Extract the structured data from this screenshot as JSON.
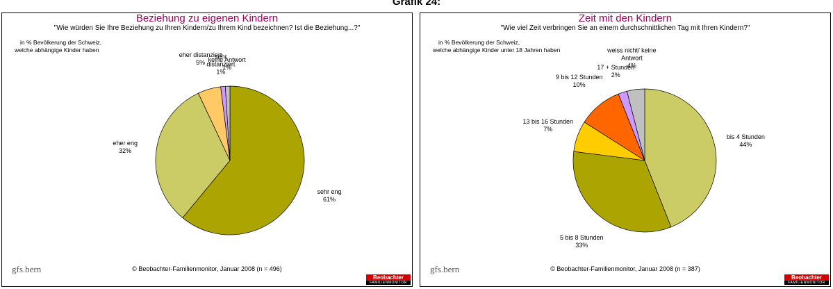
{
  "page_title": "Grafik 24:",
  "logos": {
    "left": "gfs.bern",
    "right_top": "Beobachter",
    "right_bottom": "FAMILIENMONITOR"
  },
  "chart_data": [
    {
      "type": "pie",
      "title": "Beziehung zu eigenen Kindern",
      "subtitle": "\"Wie würden Sie Ihre Beziehung zu Ihren Kindern/zu Ihrem Kind bezeichnen? Ist die Beziehung...?\"",
      "note": [
        "in % Bevölkerung der Schweiz,",
        "welche abhängige Kinder haben"
      ],
      "categories": [
        "sehr eng",
        "eher eng",
        "eher distanziert",
        "sehr distanziert",
        "keine Antwort"
      ],
      "values": [
        61,
        32,
        5,
        1,
        1
      ],
      "value_labels": [
        "61%",
        "32%",
        "5%",
        "1%",
        "1%"
      ],
      "colors": [
        "#aca400",
        "#cccc66",
        "#ffc966",
        "#cc99ff",
        "#c0c0c0"
      ],
      "source": "© Beobachter-Familienmonitor, Januar 2008 (n = 496)"
    },
    {
      "type": "pie",
      "title": "Zeit mit den Kindern",
      "subtitle": "\"Wie viel Zeit verbringen Sie an einem durchschnittlichen Tag mit Ihren Kindern?\"",
      "note": [
        "in % Bevölkerung der Schweiz,",
        "welche abhängige Kinder unter 18 Jahren haben"
      ],
      "categories": [
        "bis 4 Stunden",
        "5 bis 8 Stunden",
        "13 bis 16 Stunden",
        "9 bis 12 Stunden",
        "17 + Stunden",
        "weiss nicht/ keine Antwort"
      ],
      "values": [
        44,
        33,
        7,
        10,
        2,
        4
      ],
      "value_labels": [
        "44%",
        "33%",
        "7%",
        "10%",
        "2%",
        "4%"
      ],
      "colors": [
        "#cccc66",
        "#aca400",
        "#ffcc00",
        "#ff6600",
        "#cc99ff",
        "#c0c0c0"
      ],
      "source": "© Beobachter-Familienmonitor, Januar 2008 (n = 387)"
    }
  ]
}
